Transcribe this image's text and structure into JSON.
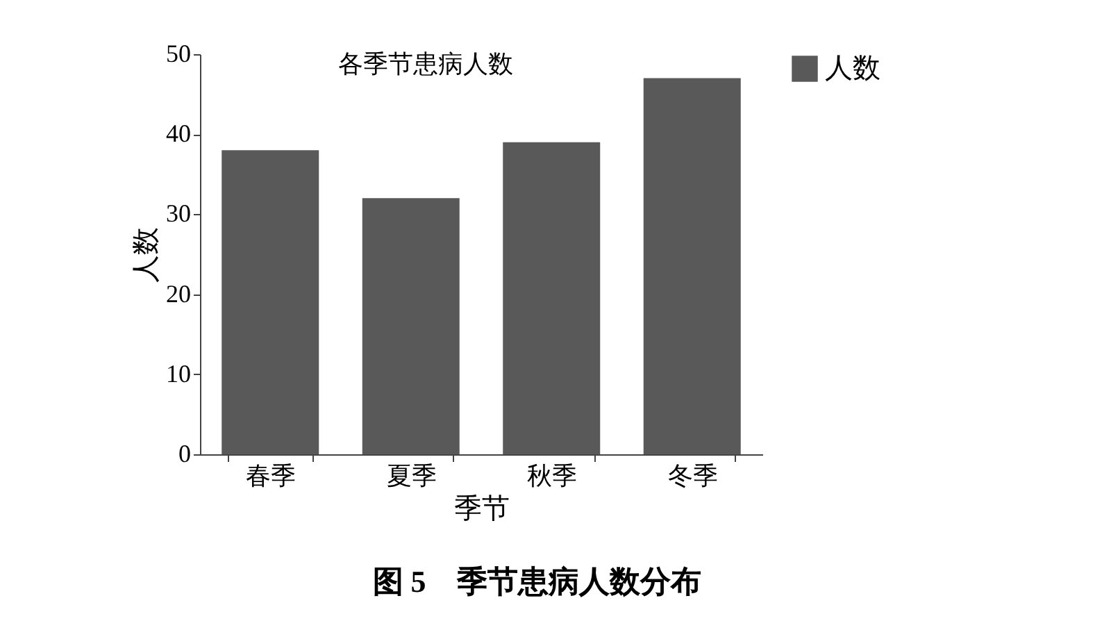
{
  "chart_data": {
    "type": "bar",
    "title": "各季节患病人数",
    "xlabel": "季节",
    "ylabel": "人数",
    "categories": [
      "春季",
      "夏季",
      "秋季",
      "冬季"
    ],
    "series": [
      {
        "name": "人数",
        "color": "#595959",
        "values": [
          38,
          32,
          39,
          47
        ]
      }
    ],
    "ylim": [
      0,
      50
    ],
    "yticks": [
      0,
      10,
      20,
      30,
      40,
      50
    ],
    "grid": false,
    "legend": "right",
    "annotations": [
      "图 5　季节患病人数分布"
    ]
  }
}
